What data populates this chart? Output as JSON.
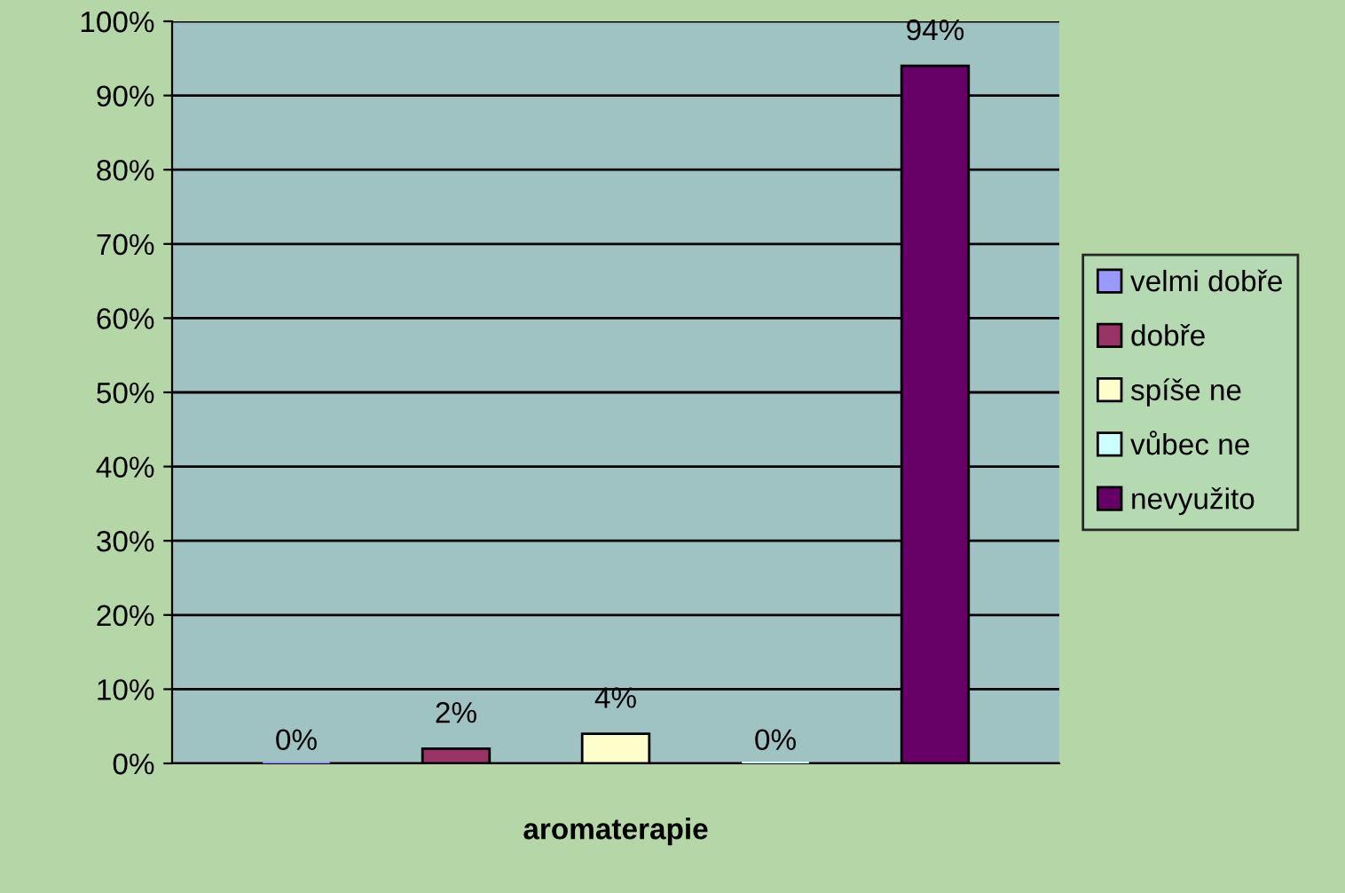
{
  "chart_data": {
    "type": "bar",
    "categories": [
      "aromaterapie"
    ],
    "series": [
      {
        "name": "velmi dobře",
        "color": "#9999ff",
        "values": [
          0
        ],
        "value_labels": [
          "0%"
        ]
      },
      {
        "name": "dobře",
        "color": "#993366",
        "values": [
          2
        ],
        "value_labels": [
          "2%"
        ]
      },
      {
        "name": "spíše ne",
        "color": "#ffffcc",
        "values": [
          4
        ],
        "value_labels": [
          "4%"
        ]
      },
      {
        "name": "vůbec ne",
        "color": "#ccffff",
        "values": [
          0
        ],
        "value_labels": [
          "0%"
        ]
      },
      {
        "name": "nevyužito",
        "color": "#660066",
        "values": [
          94
        ],
        "value_labels": [
          "94%"
        ]
      }
    ],
    "ylim": [
      0,
      100
    ],
    "yticks": [
      {
        "value": 0,
        "label": "0%"
      },
      {
        "value": 10,
        "label": "10%"
      },
      {
        "value": 20,
        "label": "20%"
      },
      {
        "value": 30,
        "label": "30%"
      },
      {
        "value": 40,
        "label": "40%"
      },
      {
        "value": 50,
        "label": "50%"
      },
      {
        "value": 60,
        "label": "60%"
      },
      {
        "value": 70,
        "label": "70%"
      },
      {
        "value": 80,
        "label": "80%"
      },
      {
        "value": 90,
        "label": "90%"
      },
      {
        "value": 100,
        "label": "100%"
      }
    ],
    "grid": "y",
    "legend": "right"
  }
}
